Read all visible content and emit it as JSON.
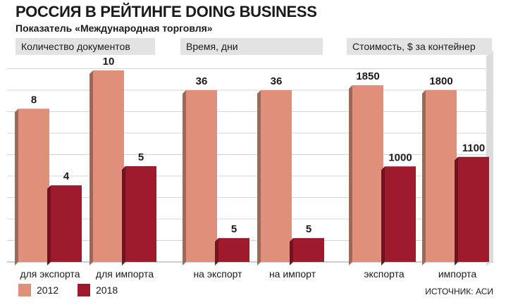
{
  "title": "РОССИЯ В РЕЙТИНГЕ DOING BUSINESS",
  "subtitle": "Показатель «Международная торговля»",
  "source": "ИСТОЧНИК: АСИ",
  "colors": {
    "y2012": "#e0907a",
    "y2018": "#9e1b2e",
    "header_bg": "#e3e3e3",
    "grid": "#d5d5d5"
  },
  "chart_data": [
    {
      "type": "bar",
      "title": "Количество документов",
      "categories": [
        "для экспорта",
        "для импорта"
      ],
      "series": [
        {
          "name": "2012",
          "values": [
            8,
            10
          ]
        },
        {
          "name": "2018",
          "values": [
            4,
            5
          ]
        }
      ]
    },
    {
      "type": "bar",
      "title": "Время, дни",
      "categories": [
        "на экспорт",
        "на импорт"
      ],
      "series": [
        {
          "name": "2012",
          "values": [
            36,
            36
          ]
        },
        {
          "name": "2018",
          "values": [
            5,
            5
          ]
        }
      ]
    },
    {
      "type": "bar",
      "title": "Стоимость, $ за контейнер",
      "categories": [
        "экспорта",
        "импорта"
      ],
      "series": [
        {
          "name": "2012",
          "values": [
            1850,
            1800
          ]
        },
        {
          "name": "2018",
          "values": [
            1000,
            1100
          ]
        }
      ]
    }
  ],
  "legend": [
    "2012",
    "2018"
  ]
}
